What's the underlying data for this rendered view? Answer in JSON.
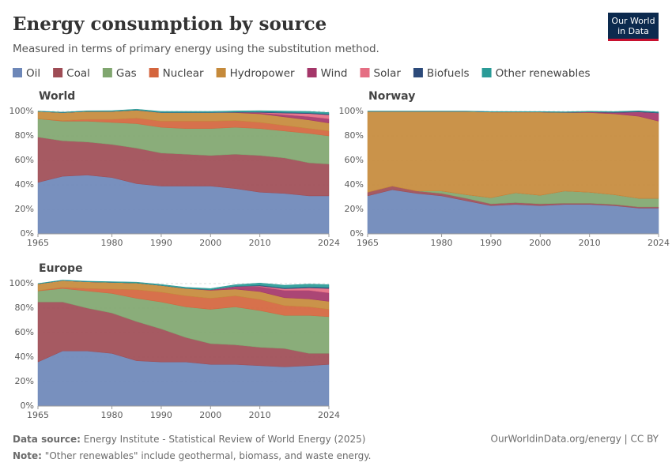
{
  "title": "Energy consumption by source",
  "subtitle": "Measured in terms of primary energy using the substitution method.",
  "logo": [
    "Our World",
    "in Data"
  ],
  "footer": {
    "source_label": "Data source:",
    "source": "Energy Institute - Statistical Review of World Energy (2025)",
    "url": "OurWorldinData.org/energy | CC BY",
    "note_label": "Note:",
    "note": "\"Other renewables\" include geothermal, biomass, and waste energy."
  },
  "chart_data": [
    {
      "type": "area",
      "title": "World",
      "x": [
        1965,
        1970,
        1975,
        1980,
        1985,
        1990,
        1995,
        2000,
        2005,
        2010,
        2015,
        2020,
        2024
      ],
      "xlim": [
        1965,
        2024
      ],
      "xticks": [
        1965,
        1980,
        1990,
        2000,
        2010,
        2024
      ],
      "ylim": [
        0,
        100
      ],
      "yticks": [
        {
          "value": 0,
          "label": "0%"
        },
        {
          "value": 20,
          "label": "20%"
        },
        {
          "value": 40,
          "label": "40%"
        },
        {
          "value": 60,
          "label": "60%"
        },
        {
          "value": 80,
          "label": "80%"
        },
        {
          "value": 100,
          "label": "100%"
        }
      ],
      "grid": true,
      "series": [
        {
          "name": "Oil",
          "color": "#6d87b8",
          "values": [
            42,
            47,
            48,
            46,
            41,
            39,
            39,
            39,
            37,
            34,
            33,
            31,
            31
          ]
        },
        {
          "name": "Coal",
          "color": "#9e4c55",
          "values": [
            37,
            29,
            27,
            27,
            29,
            27,
            26,
            25,
            28,
            30,
            29,
            27,
            26
          ]
        },
        {
          "name": "Gas",
          "color": "#80a66f",
          "values": [
            15,
            16,
            17,
            18,
            20,
            21,
            21,
            22,
            22,
            22,
            22,
            24,
            23
          ]
        },
        {
          "name": "Nuclear",
          "color": "#d4653d",
          "values": [
            0,
            0.5,
            1.5,
            2.5,
            4.5,
            5,
            6,
            6,
            5.5,
            5,
            4.5,
            4,
            4
          ]
        },
        {
          "name": "Hydropower",
          "color": "#c58a3b",
          "values": [
            6,
            6.5,
            6.5,
            6.5,
            6.5,
            7,
            7,
            7,
            6.5,
            7,
            7,
            7,
            6.5
          ]
        },
        {
          "name": "Wind",
          "color": "#a43669",
          "values": [
            0,
            0,
            0,
            0,
            0,
            0,
            0,
            0,
            0.2,
            0.8,
            1.8,
            2.8,
            3.5
          ]
        },
        {
          "name": "Solar",
          "color": "#e56e83",
          "values": [
            0,
            0,
            0,
            0,
            0,
            0,
            0,
            0,
            0,
            0.3,
            1.3,
            2.4,
            3.2
          ]
        },
        {
          "name": "Biofuels",
          "color": "#2c4a7a",
          "values": [
            0,
            0,
            0,
            0,
            0.1,
            0.1,
            0.1,
            0.1,
            0.2,
            0.5,
            0.6,
            0.6,
            0.7
          ]
        },
        {
          "name": "Other renewables",
          "color": "#2a9b97",
          "values": [
            0.3,
            0.4,
            0.5,
            0.6,
            0.7,
            0.9,
            0.9,
            0.9,
            1,
            1,
            1.1,
            1.2,
            1.2
          ]
        }
      ]
    },
    {
      "type": "area",
      "title": "Norway",
      "x": [
        1965,
        1970,
        1975,
        1980,
        1985,
        1990,
        1995,
        2000,
        2005,
        2010,
        2015,
        2020,
        2024
      ],
      "xlim": [
        1965,
        2024
      ],
      "xticks": [
        1965,
        1980,
        1990,
        2000,
        2010,
        2024
      ],
      "ylim": [
        0,
        100
      ],
      "yticks": [
        {
          "value": 0,
          "label": "0%"
        },
        {
          "value": 20,
          "label": "20%"
        },
        {
          "value": 40,
          "label": "40%"
        },
        {
          "value": 60,
          "label": "60%"
        },
        {
          "value": 80,
          "label": "80%"
        },
        {
          "value": 100,
          "label": "100%"
        }
      ],
      "grid": true,
      "series": [
        {
          "name": "Oil",
          "color": "#6d87b8",
          "values": [
            31,
            36,
            33,
            31,
            27,
            23,
            24,
            23,
            24,
            24,
            23,
            21,
            21
          ]
        },
        {
          "name": "Coal",
          "color": "#9e4c55",
          "values": [
            3,
            3,
            2,
            2,
            2,
            1.5,
            1.5,
            1.5,
            1,
            1,
            1,
            1,
            1
          ]
        },
        {
          "name": "Gas",
          "color": "#80a66f",
          "values": [
            0,
            0,
            0,
            2,
            3,
            5,
            8,
            7,
            10,
            9,
            8,
            7,
            7
          ]
        },
        {
          "name": "Nuclear",
          "color": "#d4653d",
          "values": [
            0,
            0,
            0,
            0,
            0,
            0,
            0,
            0,
            0,
            0,
            0,
            0,
            0
          ]
        },
        {
          "name": "Hydropower",
          "color": "#c58a3b",
          "values": [
            66,
            61,
            65,
            65,
            68,
            70,
            66,
            68,
            64,
            65,
            66,
            67,
            63
          ]
        },
        {
          "name": "Wind",
          "color": "#a43669",
          "values": [
            0,
            0,
            0,
            0,
            0,
            0,
            0,
            0,
            0.2,
            0.5,
            1,
            3.5,
            6.5
          ]
        },
        {
          "name": "Solar",
          "color": "#e56e83",
          "values": [
            0,
            0,
            0,
            0,
            0,
            0,
            0,
            0,
            0,
            0,
            0,
            0,
            0.1
          ]
        },
        {
          "name": "Biofuels",
          "color": "#2c4a7a",
          "values": [
            0,
            0,
            0,
            0,
            0,
            0,
            0,
            0,
            0,
            0.1,
            0.4,
            0.5,
            0.5
          ]
        },
        {
          "name": "Other renewables",
          "color": "#2a9b97",
          "values": [
            0.3,
            0.3,
            0.3,
            0.3,
            0.3,
            0.4,
            0.4,
            0.4,
            0.5,
            0.5,
            0.5,
            0.5,
            0.5
          ]
        }
      ]
    },
    {
      "type": "area",
      "title": "Europe",
      "x": [
        1965,
        1970,
        1975,
        1980,
        1985,
        1990,
        1995,
        2000,
        2005,
        2010,
        2015,
        2020,
        2024
      ],
      "xlim": [
        1965,
        2024
      ],
      "xticks": [
        1965,
        1980,
        1990,
        2000,
        2010,
        2024
      ],
      "ylim": [
        0,
        100
      ],
      "yticks": [
        {
          "value": 0,
          "label": "0%"
        },
        {
          "value": 20,
          "label": "20%"
        },
        {
          "value": 40,
          "label": "40%"
        },
        {
          "value": 60,
          "label": "60%"
        },
        {
          "value": 80,
          "label": "80%"
        },
        {
          "value": 100,
          "label": "100%"
        }
      ],
      "grid": true,
      "series": [
        {
          "name": "Oil",
          "color": "#6d87b8",
          "values": [
            36,
            45,
            45,
            43,
            37,
            36,
            36,
            34,
            34,
            33,
            32,
            33,
            34
          ]
        },
        {
          "name": "Coal",
          "color": "#9e4c55",
          "values": [
            49,
            40,
            35,
            33,
            32,
            27,
            20,
            17,
            16,
            15,
            15,
            10,
            9
          ]
        },
        {
          "name": "Gas",
          "color": "#80a66f",
          "values": [
            9,
            11,
            14,
            16,
            19,
            22,
            25,
            28,
            31,
            30,
            27,
            31,
            30
          ]
        },
        {
          "name": "Nuclear",
          "color": "#d4653d",
          "values": [
            0.3,
            1,
            2,
            3.5,
            7,
            8,
            9,
            9,
            9,
            9,
            8,
            7,
            6
          ]
        },
        {
          "name": "Hydropower",
          "color": "#c58a3b",
          "values": [
            5.5,
            5.5,
            5.5,
            5.5,
            5.5,
            5.5,
            6,
            6.5,
            5.5,
            6.5,
            6.5,
            6.5,
            6.5
          ]
        },
        {
          "name": "Wind",
          "color": "#a43669",
          "values": [
            0,
            0,
            0,
            0,
            0,
            0,
            0.1,
            0.5,
            2,
            4,
            6,
            7,
            7
          ]
        },
        {
          "name": "Solar",
          "color": "#e56e83",
          "values": [
            0,
            0,
            0,
            0,
            0,
            0,
            0,
            0,
            0.1,
            0.6,
            1.3,
            2,
            3.5
          ]
        },
        {
          "name": "Biofuels",
          "color": "#2c4a7a",
          "values": [
            0,
            0,
            0,
            0,
            0,
            0,
            0,
            0,
            0.2,
            0.6,
            0.7,
            0.8,
            0.9
          ]
        },
        {
          "name": "Other renewables",
          "color": "#2a9b97",
          "values": [
            0.3,
            0.4,
            0.5,
            0.6,
            0.7,
            0.8,
            0.9,
            1,
            1.3,
            1.8,
            2.2,
            2.3,
            2.3
          ]
        }
      ]
    }
  ]
}
